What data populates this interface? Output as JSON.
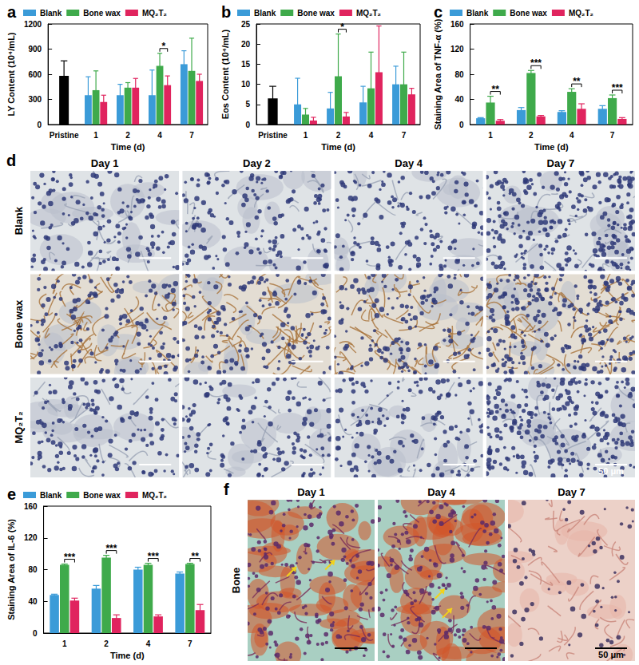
{
  "chart_data": [
    {
      "type": "bar",
      "title": "a",
      "x_label": "Time (d)",
      "y_label": "LY Content (10⁴/mL)",
      "categories": [
        "Pristine",
        "1",
        "2",
        "4",
        "7"
      ],
      "series": [
        {
          "name": "Pristine",
          "color": "#000000",
          "values": [
            580,
            null,
            null,
            null,
            null
          ],
          "errors": [
            180,
            null,
            null,
            null,
            null
          ]
        },
        {
          "name": "Blank",
          "color": "#3b9bd8",
          "values": [
            null,
            350,
            350,
            350,
            720
          ],
          "errors": [
            null,
            220,
            130,
            300,
            160
          ]
        },
        {
          "name": "Bone wax",
          "color": "#3faa4b",
          "values": [
            null,
            410,
            440,
            700,
            640
          ],
          "errors": [
            null,
            230,
            60,
            150,
            390
          ]
        },
        {
          "name": "MQ₂T₂",
          "color": "#e0245e",
          "values": [
            null,
            270,
            440,
            470,
            520
          ],
          "errors": [
            null,
            80,
            110,
            110,
            80
          ]
        }
      ],
      "ylim": [
        0,
        1200
      ],
      "yticks": [
        0,
        300,
        600,
        900,
        1200
      ],
      "legend": "top",
      "significance": [
        {
          "category": "4",
          "between": [
            "Bone wax",
            "MQ₂T₂"
          ],
          "label": "*"
        }
      ]
    },
    {
      "type": "bar",
      "title": "b",
      "x_label": "Time (d)",
      "y_label": "Eos Content (10⁴/mL)",
      "categories": [
        "Pristine",
        "1",
        "2",
        "4",
        "7"
      ],
      "series": [
        {
          "name": "Pristine",
          "color": "#000000",
          "values": [
            6.5,
            null,
            null,
            null,
            null
          ],
          "errors": [
            3,
            null,
            null,
            null,
            null
          ]
        },
        {
          "name": "Blank",
          "color": "#3b9bd8",
          "values": [
            null,
            5,
            4,
            5.5,
            10
          ],
          "errors": [
            null,
            6.5,
            4,
            4,
            4.5
          ]
        },
        {
          "name": "Bone wax",
          "color": "#3faa4b",
          "values": [
            null,
            2.5,
            12,
            9,
            10
          ],
          "errors": [
            null,
            1.5,
            10.5,
            9,
            8
          ]
        },
        {
          "name": "MQ₂T₂",
          "color": "#e0245e",
          "values": [
            null,
            1,
            2,
            13,
            7.5
          ],
          "errors": [
            null,
            0.8,
            1,
            11.5,
            1.5
          ]
        }
      ],
      "ylim": [
        0,
        25
      ],
      "yticks": [
        0,
        5,
        10,
        15,
        20,
        25
      ],
      "legend": "top",
      "significance": [
        {
          "category": "2",
          "between": [
            "Bone wax",
            "MQ₂T₂"
          ],
          "label": "*"
        }
      ]
    },
    {
      "type": "bar",
      "title": "c",
      "x_label": "Time (d)",
      "y_label": "Staining Area of TNF-α (%)",
      "categories": [
        "1",
        "2",
        "4",
        "7"
      ],
      "series": [
        {
          "name": "Blank",
          "color": "#3b9bd8",
          "values": [
            10,
            23,
            20,
            25
          ],
          "errors": [
            1,
            4,
            2,
            5
          ]
        },
        {
          "name": "Bone wax",
          "color": "#3faa4b",
          "values": [
            35,
            82,
            52,
            42
          ],
          "errors": [
            10,
            4,
            5,
            5
          ]
        },
        {
          "name": "MQ₂T₂",
          "color": "#e0245e",
          "values": [
            6,
            13,
            25,
            9
          ],
          "errors": [
            2,
            1.5,
            8,
            2
          ]
        }
      ],
      "ylim": [
        0,
        160
      ],
      "yticks": [
        0,
        40,
        80,
        120,
        160
      ],
      "legend": "top",
      "significance": [
        {
          "category": "1",
          "between": [
            "Bone wax",
            "MQ₂T₂"
          ],
          "label": "**"
        },
        {
          "category": "2",
          "between": [
            "Bone wax",
            "MQ₂T₂"
          ],
          "label": "***"
        },
        {
          "category": "4",
          "between": [
            "Bone wax",
            "MQ₂T₂"
          ],
          "label": "**"
        },
        {
          "category": "7",
          "between": [
            "Bone wax",
            "MQ₂T₂"
          ],
          "label": "***"
        }
      ]
    },
    {
      "type": "bar",
      "title": "e",
      "x_label": "Time (d)",
      "y_label": "Staining Area of IL-6 (%)",
      "categories": [
        "1",
        "2",
        "4",
        "7"
      ],
      "series": [
        {
          "name": "Blank",
          "color": "#3b9bd8",
          "values": [
            48,
            56,
            80,
            75
          ],
          "errors": [
            1,
            4,
            3,
            2
          ]
        },
        {
          "name": "Bone wax",
          "color": "#3faa4b",
          "values": [
            86,
            95,
            86,
            87
          ],
          "errors": [
            1,
            3,
            2,
            1
          ]
        },
        {
          "name": "MQ₂T₂",
          "color": "#e0245e",
          "values": [
            41,
            19,
            21,
            29
          ],
          "errors": [
            3,
            4,
            2,
            7
          ]
        }
      ],
      "ylim": [
        0,
        160
      ],
      "yticks": [
        0,
        40,
        80,
        120,
        160
      ],
      "legend": "top",
      "significance": [
        {
          "category": "1",
          "between": [
            "Bone wax",
            "MQ₂T₂"
          ],
          "label": "***"
        },
        {
          "category": "2",
          "between": [
            "Bone wax",
            "MQ₂T₂"
          ],
          "label": "***"
        },
        {
          "category": "4",
          "between": [
            "Bone wax",
            "MQ₂T₂"
          ],
          "label": "***"
        },
        {
          "category": "7",
          "between": [
            "Bone wax",
            "MQ₂T₂"
          ],
          "label": "**"
        }
      ]
    }
  ],
  "micrographs": [
    {
      "title": "d",
      "columns": [
        "Day 1",
        "Day 2",
        "Day 4",
        "Day 7"
      ],
      "rows": [
        "Blank",
        "Bone wax",
        "MQ₂T₂"
      ],
      "scale_bar": "50 μm"
    },
    {
      "title": "f",
      "columns": [
        "Day 1",
        "Day 4",
        "Day 7"
      ],
      "rows": [
        "Bone"
      ],
      "scale_bar": "50 μm"
    }
  ]
}
